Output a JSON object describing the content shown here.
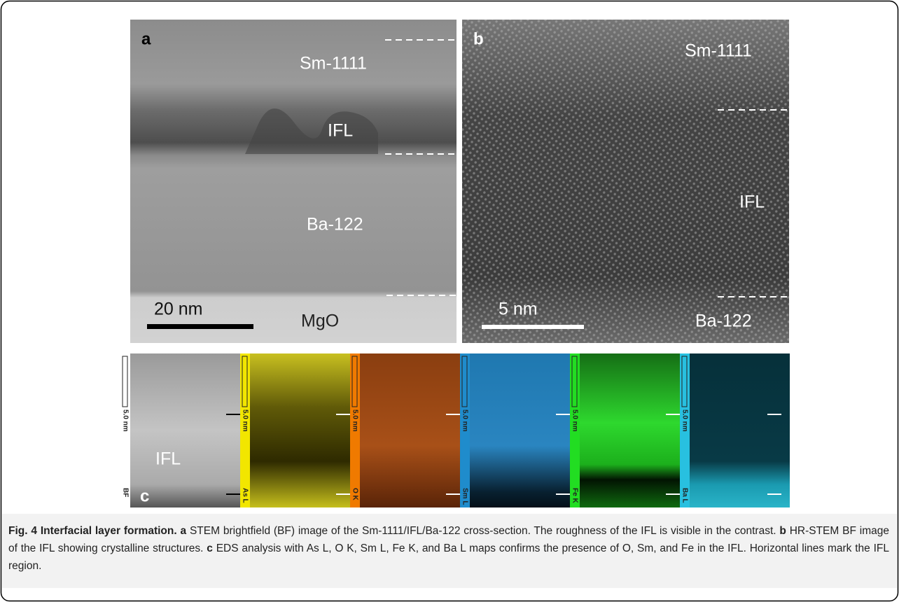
{
  "panel_a": {
    "label": "a",
    "layers": [
      "Sm-1111",
      "IFL",
      "Ba-122",
      "MgO"
    ],
    "scale_bar": "20 nm"
  },
  "panel_b": {
    "label": "b",
    "layers": [
      "Sm-1111",
      "IFL",
      "Ba-122"
    ],
    "scale_bar": "5 nm"
  },
  "panel_c": {
    "label": "c",
    "annotation": "IFL",
    "maps": [
      {
        "channel": "BF",
        "scale": "5.0 nm"
      },
      {
        "channel": "As L",
        "scale": "5.0 nm"
      },
      {
        "channel": "O K",
        "scale": "5.0 nm"
      },
      {
        "channel": "Sm L",
        "scale": "5.0 nm"
      },
      {
        "channel": "Fe K",
        "scale": "5.0 nm"
      },
      {
        "channel": "Ba L",
        "scale": "5.0 nm"
      }
    ]
  },
  "caption": {
    "heading": "Fig. 4 Interfacial layer formation.",
    "items": [
      {
        "label": "a",
        "text": "STEM brightfield (BF) image of the Sm-1111/IFL/Ba-122 cross-section. The roughness of the IFL is visible in the contrast."
      },
      {
        "label": "b",
        "text": "HR-STEM BF image of the IFL showing crystalline structures."
      },
      {
        "label": "c",
        "text": "EDS analysis with As L, O K, Sm L, Fe K, and Ba L maps confirms the presence of O, Sm, and Fe in the IFL. Horizontal lines mark the IFL region."
      }
    ]
  }
}
